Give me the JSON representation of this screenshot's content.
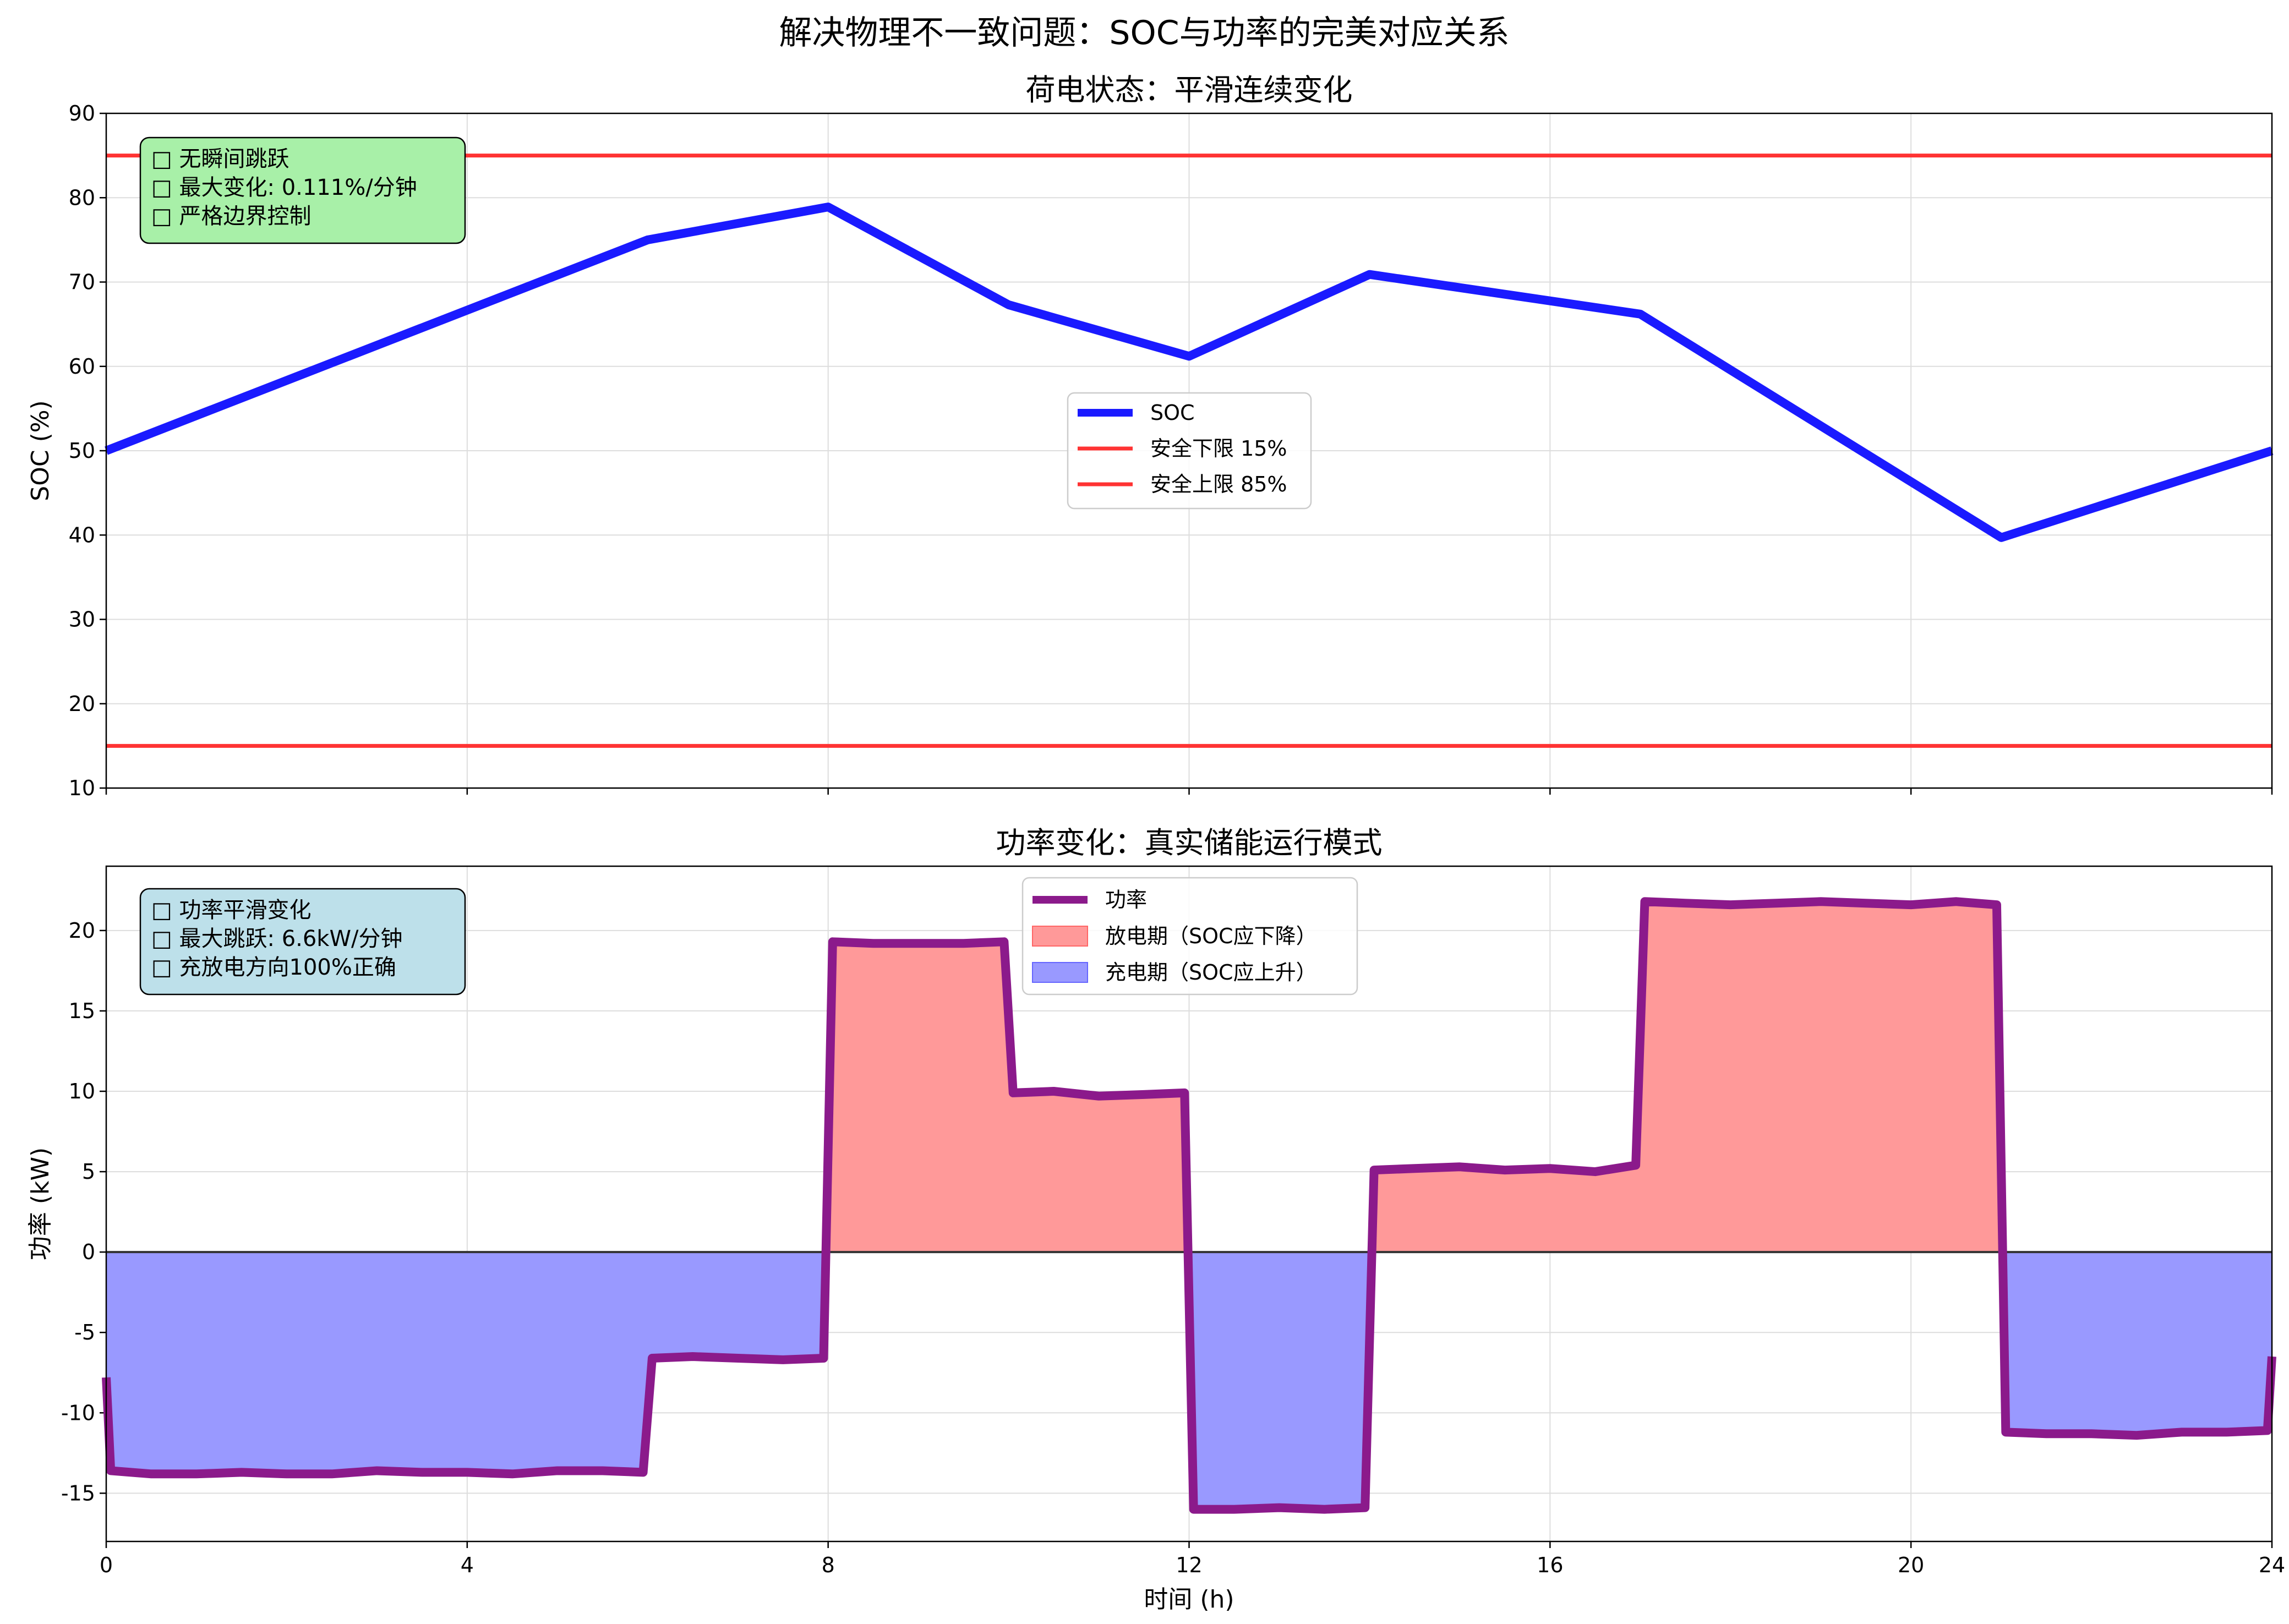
{
  "title": "解决物理不一致问题：SOC与功率的完美对应关系",
  "colors": {
    "soc_line": "#1a1aff",
    "limit_line": "#ff3333",
    "power_line": "#8b1a8b",
    "discharge_fill": "#ff9999",
    "charge_fill": "#9999ff",
    "soc_note_bg": "#a8f0a8",
    "power_note_bg": "#bde0ea"
  },
  "chart_data": [
    {
      "type": "line",
      "title": "荷电状态：平滑连续变化",
      "xlabel": "",
      "ylabel": "SOC (%)",
      "xlim": [
        0,
        24
      ],
      "ylim": [
        10,
        90
      ],
      "xticks": [
        0,
        4,
        8,
        12,
        16,
        20,
        24
      ],
      "yticks": [
        10,
        20,
        30,
        40,
        50,
        60,
        70,
        80,
        90
      ],
      "grid": true,
      "legend_position": "center",
      "series": [
        {
          "name": "SOC",
          "x": [
            0,
            6,
            8,
            10,
            12,
            14,
            17,
            21,
            24
          ],
          "y": [
            50,
            75,
            78.9,
            67.3,
            61.2,
            70.9,
            66.2,
            39.7,
            50
          ]
        }
      ],
      "hlines": [
        {
          "name": "安全下限 15%",
          "y": 15
        },
        {
          "name": "安全上限 85%",
          "y": 85
        }
      ],
      "annotation": {
        "lines": [
          "□ 无瞬间跳跃",
          "□ 最大变化: 0.111%/分钟",
          "□ 严格边界控制"
        ],
        "position": "top-left"
      }
    },
    {
      "type": "area",
      "title": "功率变化：真实储能运行模式",
      "xlabel": "时间 (h)",
      "ylabel": "功率 (kW)",
      "xlim": [
        0,
        24
      ],
      "ylim": [
        -18,
        24
      ],
      "xticks": [
        0,
        4,
        8,
        12,
        16,
        20,
        24
      ],
      "xtick_labels": [
        "0",
        "4",
        "8",
        "12",
        "16",
        "20",
        "24"
      ],
      "yticks": [
        -15,
        -10,
        -5,
        0,
        5,
        10,
        15,
        20
      ],
      "grid": true,
      "legend_position": "upper-center",
      "series": [
        {
          "name": "功率",
          "x": [
            0,
            0.05,
            0.5,
            1,
            1.5,
            2,
            2.5,
            3,
            3.5,
            4,
            4.5,
            5,
            5.5,
            5.95,
            6.05,
            6.5,
            7,
            7.5,
            7.95,
            8.05,
            8.5,
            9,
            9.5,
            9.95,
            10.05,
            10.5,
            11,
            11.5,
            11.95,
            12.05,
            12.5,
            13,
            13.5,
            13.95,
            14.05,
            14.5,
            15,
            15.5,
            16,
            16.5,
            16.95,
            17.05,
            17.5,
            18,
            18.5,
            19,
            19.5,
            20,
            20.5,
            20.95,
            21.05,
            21.5,
            22,
            22.5,
            23,
            23.5,
            23.95,
            24
          ],
          "y": [
            -7.8,
            -13.6,
            -13.8,
            -13.8,
            -13.7,
            -13.8,
            -13.8,
            -13.6,
            -13.7,
            -13.7,
            -13.8,
            -13.6,
            -13.6,
            -13.7,
            -6.6,
            -6.5,
            -6.6,
            -6.7,
            -6.6,
            19.3,
            19.2,
            19.2,
            19.2,
            19.3,
            9.9,
            10.0,
            9.7,
            9.8,
            9.9,
            -16.0,
            -16.0,
            -15.9,
            -16.0,
            -15.9,
            5.1,
            5.2,
            5.3,
            5.1,
            5.2,
            5.0,
            5.4,
            21.8,
            21.7,
            21.6,
            21.7,
            21.8,
            21.7,
            21.6,
            21.8,
            21.6,
            -11.2,
            -11.3,
            -11.3,
            -11.4,
            -11.2,
            -11.2,
            -11.1,
            -6.5
          ]
        }
      ],
      "fills": [
        {
          "name": "放电期（SOC应下降）",
          "where": "y>0"
        },
        {
          "name": "充电期（SOC应上升）",
          "where": "y<0"
        }
      ],
      "annotation": {
        "lines": [
          "□ 功率平滑变化",
          "□ 最大跳跃: 6.6kW/分钟",
          "□ 充放电方向100%正确"
        ],
        "position": "top-left"
      }
    }
  ]
}
